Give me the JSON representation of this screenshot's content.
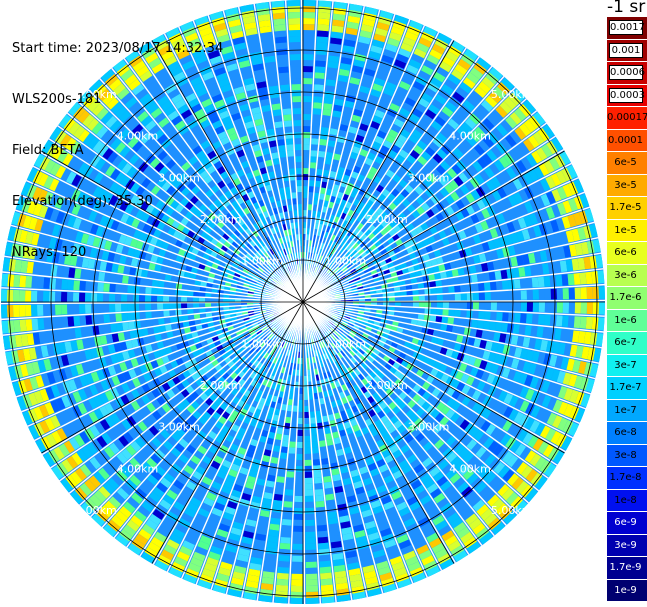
{
  "info": {
    "start_time": "Start time: 2023/08/17 14:32:34",
    "device": "WLS200s-181",
    "field": "Field: BETA",
    "elevation": "Elevation(deg): 35.30",
    "nrays": "NRays: 120"
  },
  "colorbar": {
    "unit": "-1 sr",
    "labels": [
      "0.0017",
      "0.001",
      "0.0006",
      "0.0003",
      "0.00017",
      "0.0001",
      "6e-5",
      "3e-5",
      "1.7e-5",
      "1e-5",
      "6e-6",
      "3e-6",
      "1.7e-6",
      "1e-6",
      "6e-7",
      "3e-7",
      "1.7e-7",
      "1e-7",
      "6e-8",
      "3e-8",
      "1.7e-8",
      "1e-8",
      "6e-9",
      "3e-9",
      "1.7e-9",
      "1e-9"
    ],
    "colors": [
      "#7f0000",
      "#a00000",
      "#c80000",
      "#e60000",
      "#ff2000",
      "#ff5000",
      "#ff8000",
      "#ffaa00",
      "#ffd000",
      "#fff000",
      "#e8ff20",
      "#b8ff50",
      "#90ff70",
      "#60ff98",
      "#30ffc8",
      "#10f0f0",
      "#00d0ff",
      "#00a8ff",
      "#0080ff",
      "#0058ff",
      "#0030ff",
      "#0010f0",
      "#0000d0",
      "#0000b0",
      "#000090",
      "#000070"
    ]
  },
  "ring_labels": [
    "1.00km",
    "2.00km",
    "3.00km",
    "4.00km",
    "5.00km"
  ],
  "rays": 120
}
